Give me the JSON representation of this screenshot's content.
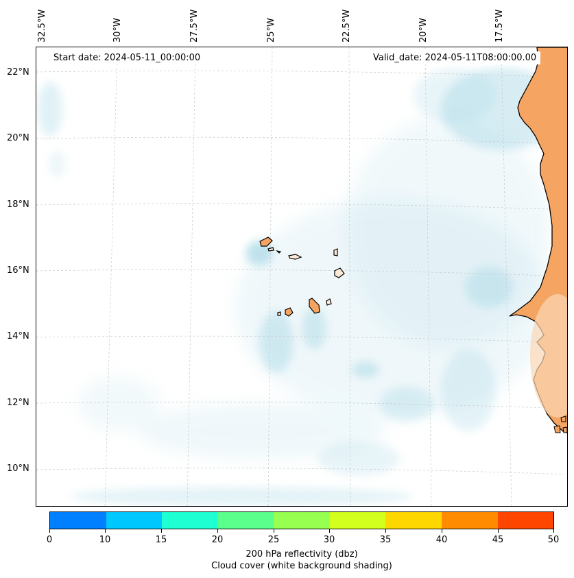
{
  "map": {
    "start_date": "Start date: 2024-05-11_00:00:00",
    "valid_date": "Valid_date: 2024-05-11T08:00:00.00",
    "lon_labels": [
      "32.5°W",
      "30°W",
      "27.5°W",
      "25°W",
      "22.5°W",
      "20°W",
      "17.5°W"
    ],
    "lat_labels": [
      "22°N",
      "20°N",
      "18°N",
      "16°N",
      "14°N",
      "12°N",
      "10°N"
    ]
  },
  "colorbar": {
    "ticks": [
      "0",
      "10",
      "15",
      "20",
      "25",
      "30",
      "35",
      "40",
      "45",
      "50"
    ],
    "colors": [
      "#0080ff",
      "#00c8ff",
      "#1effd2",
      "#5aff8c",
      "#96ff50",
      "#d2ff1e",
      "#ffd700",
      "#ff8c00",
      "#ff4600"
    ],
    "label": "200 hPa reflectivity (dbz)",
    "sublabel": "Cloud cover (white background shading)"
  },
  "colors": {
    "land": "#f5a461",
    "cloud": "#a8d8e6",
    "coast": "#000000"
  }
}
